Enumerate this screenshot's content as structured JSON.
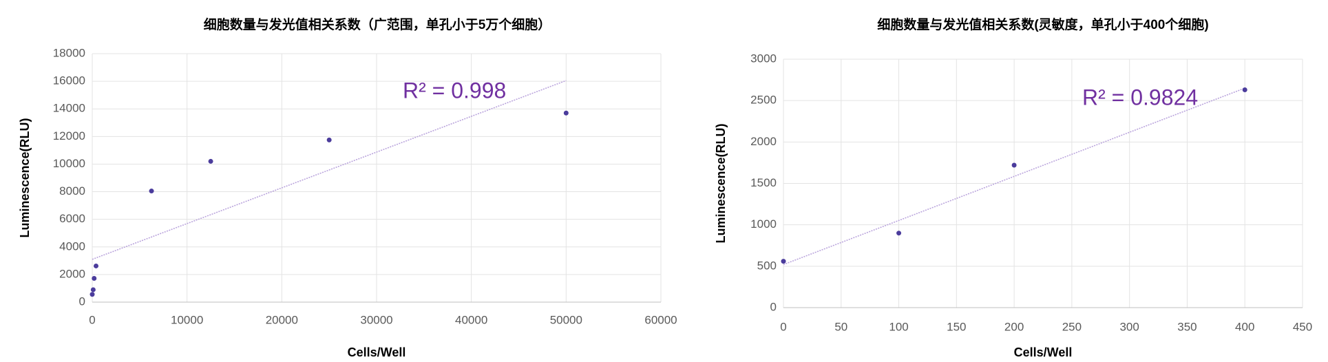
{
  "chart_data": [
    {
      "type": "scatter",
      "title": "细胞数量与发光值相关系数（广范围，单孔小于5万个细胞）",
      "xlabel": "Cells/Well",
      "ylabel": "Luminescence(RLU)",
      "x": [
        0,
        100,
        200,
        400,
        6250,
        12500,
        25000,
        50000
      ],
      "values": [
        560,
        900,
        1720,
        2620,
        8050,
        10200,
        11750,
        13700
      ],
      "color": "#4b3c9c",
      "trendline": {
        "x": [
          0,
          50000
        ],
        "y": [
          3100,
          16050
        ],
        "color": "#b9a3dc"
      },
      "annotation": "R² = 0.998",
      "xlim": [
        0,
        60000
      ],
      "xticks": [
        0,
        10000,
        20000,
        30000,
        40000,
        50000,
        60000
      ],
      "ylim": [
        0,
        18000
      ],
      "yticks": [
        0,
        2000,
        4000,
        6000,
        8000,
        10000,
        12000,
        14000,
        16000,
        18000
      ],
      "grid": true
    },
    {
      "type": "scatter",
      "title": "细胞数量与发光值相关系数(灵敏度，单孔小于400个细胞)",
      "xlabel": "Cells/Well",
      "ylabel": "Luminescence(RLU)",
      "x": [
        0,
        100,
        200,
        400
      ],
      "values": [
        560,
        900,
        1720,
        2630
      ],
      "color": "#4b3c9c",
      "trendline": {
        "x": [
          0,
          400
        ],
        "y": [
          520,
          2650
        ],
        "color": "#b9a3dc"
      },
      "annotation": "R² = 0.9824",
      "xlim": [
        0,
        450
      ],
      "xticks": [
        0,
        50,
        100,
        150,
        200,
        250,
        300,
        350,
        400,
        450
      ],
      "ylim": [
        0,
        3000
      ],
      "yticks": [
        0,
        500,
        1000,
        1500,
        2000,
        2500,
        3000
      ],
      "grid": true
    }
  ]
}
